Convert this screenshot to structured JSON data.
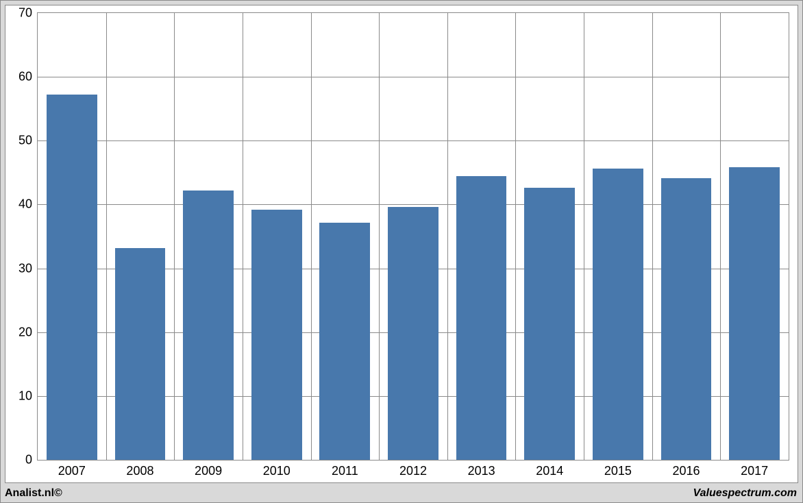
{
  "chart": {
    "type": "bar",
    "categories": [
      "2007",
      "2008",
      "2009",
      "2010",
      "2011",
      "2012",
      "2013",
      "2014",
      "2015",
      "2016",
      "2017"
    ],
    "values": [
      57.2,
      33.2,
      42.2,
      39.2,
      37.2,
      39.6,
      44.4,
      42.6,
      45.6,
      44.1,
      45.8
    ],
    "bar_color": "#4878ac",
    "bar_width_ratio": 0.74,
    "ylim": [
      0,
      70
    ],
    "ytick_step": 10,
    "yticks": [
      "0",
      "10",
      "20",
      "30",
      "40",
      "50",
      "60",
      "70"
    ],
    "background_color": "#ffffff",
    "outer_background_color": "#d9d9d9",
    "grid_color": "#8a8a8a",
    "border_color": "#8a8a8a",
    "label_fontsize_pt": 14,
    "label_color": "#000000"
  },
  "footer": {
    "left_text": "Analist.nl©",
    "right_text": "Valuespectrum.com"
  }
}
